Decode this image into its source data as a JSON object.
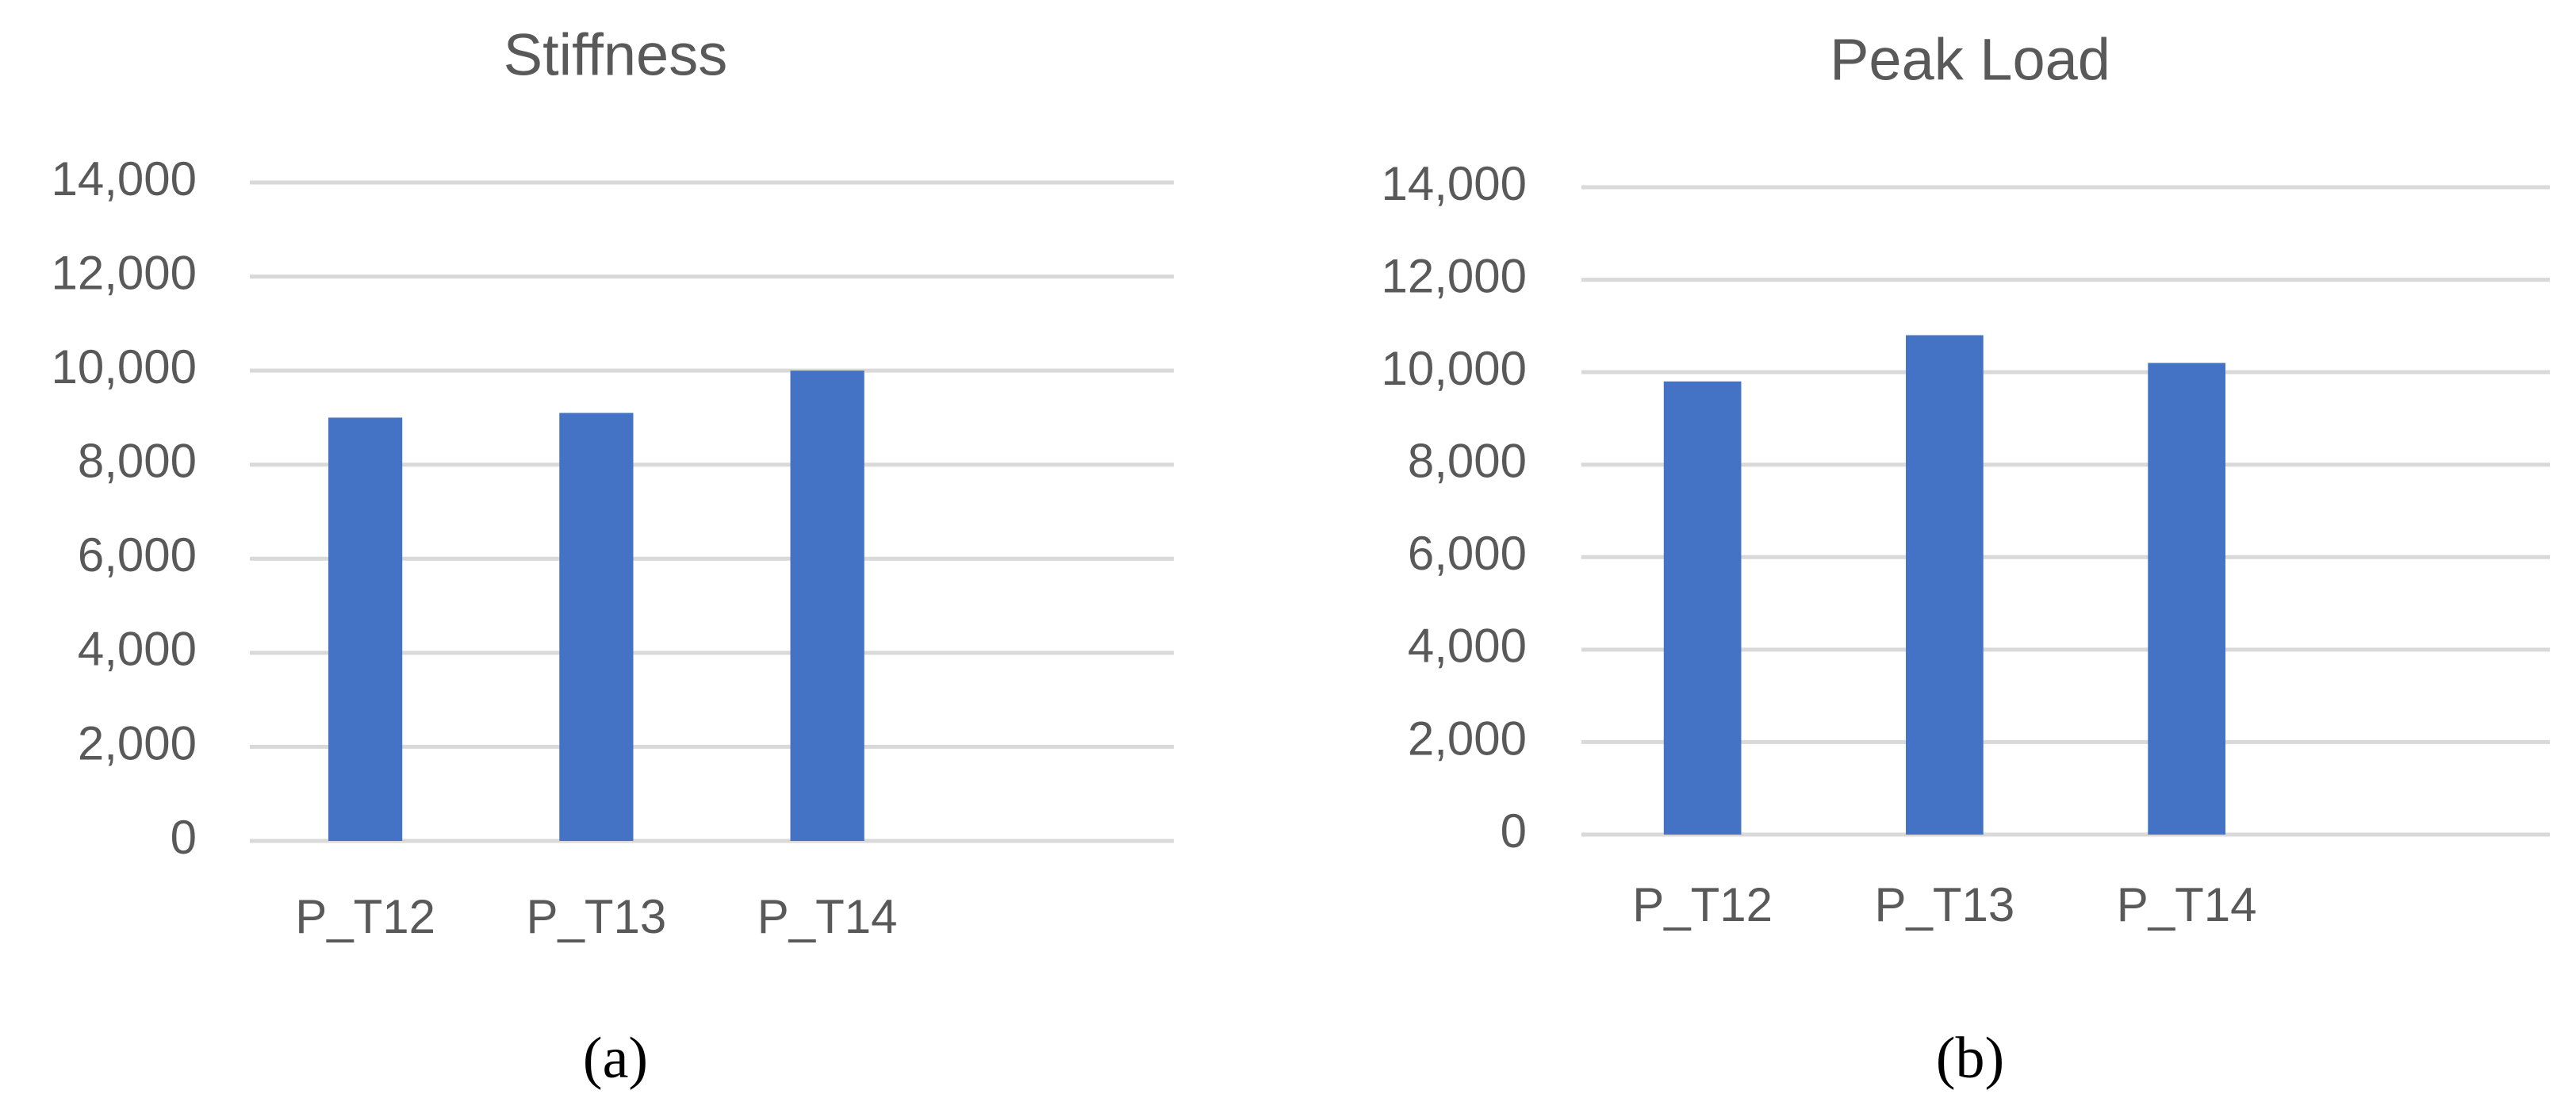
{
  "chart_data": [
    {
      "type": "bar",
      "title": "Stiffness",
      "caption": "(a)",
      "categories": [
        "P_T12",
        "P_T13",
        "P_T14",
        null
      ],
      "values": [
        9000,
        9100,
        10000,
        null
      ],
      "color": "#4472c4",
      "ylim": [
        0,
        14000
      ],
      "yticks": [
        0,
        {
          "value": 2000,
          "label": "2,000"
        },
        {
          "value": 4000,
          "label": "4,000"
        },
        {
          "value": 6000,
          "label": "6,000"
        },
        {
          "value": 8000,
          "label": "8,000"
        },
        {
          "value": 10000,
          "label": "10,000"
        },
        {
          "value": 12000,
          "label": "12,000"
        },
        {
          "value": 14000,
          "label": "14,000"
        }
      ],
      "grid": true
    },
    {
      "type": "bar",
      "title": "Peak Load",
      "caption": "(b)",
      "categories": [
        "P_T12",
        "P_T13",
        "P_T14",
        null
      ],
      "values": [
        9800,
        10800,
        10200,
        null
      ],
      "color": "#4472c4",
      "ylim": [
        0,
        14000
      ],
      "yticks": [
        0,
        {
          "value": 2000,
          "label": "2,000"
        },
        {
          "value": 4000,
          "label": "4,000"
        },
        {
          "value": 6000,
          "label": "6,000"
        },
        {
          "value": 8000,
          "label": "8,000"
        },
        {
          "value": 10000,
          "label": "10,000"
        },
        {
          "value": 12000,
          "label": "12,000"
        },
        {
          "value": 14000,
          "label": "14,000"
        }
      ],
      "grid": true
    }
  ]
}
